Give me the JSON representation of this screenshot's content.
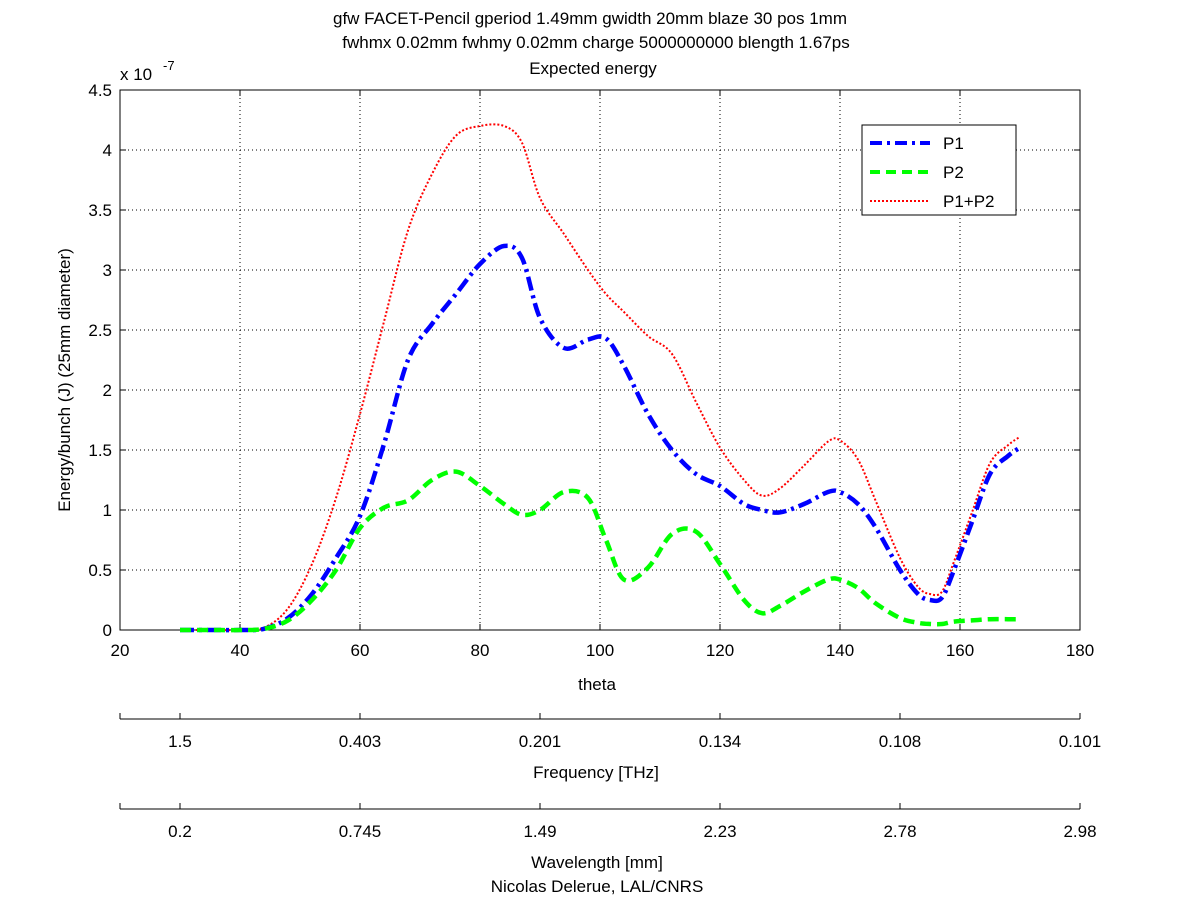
{
  "chart_data": {
    "type": "line",
    "title_lines": [
      "gfw FACET-Pencil gperiod 1.49mm gwidth 20mm blaze 30 pos 1mm",
      "fwhmx 0.02mm fwhmy 0.02mm charge 5000000000 blength 1.67ps",
      "Expected energy"
    ],
    "xlabel": "theta",
    "ylabel": "Energy/bunch (J)  (25mm diameter)",
    "y_exponent_label": "x 10",
    "y_exponent_power": "-7",
    "xlim": [
      20,
      180
    ],
    "ylim": [
      0,
      4.5
    ],
    "x_ticks": [
      "20",
      "40",
      "60",
      "80",
      "100",
      "120",
      "140",
      "160",
      "180"
    ],
    "y_ticks": [
      "0",
      "0.5",
      "1",
      "1.5",
      "2",
      "2.5",
      "3",
      "3.5",
      "4",
      "4.5"
    ],
    "grid": "on (dotted)",
    "legend_position": "top-right",
    "x": [
      30,
      35,
      40,
      44,
      48,
      52,
      56,
      60,
      64,
      68,
      72,
      76,
      80,
      84,
      87,
      90,
      94,
      98,
      101,
      104,
      108,
      112,
      116,
      120,
      124,
      127,
      130,
      134,
      138,
      140,
      143,
      146,
      150,
      153,
      155,
      157,
      159,
      162,
      165,
      168,
      170
    ],
    "series": [
      {
        "name": "P1",
        "color": "#0000ff",
        "style": "dash-dot",
        "values": [
          0,
          0,
          0,
          0.01,
          0.1,
          0.3,
          0.6,
          0.95,
          1.55,
          2.25,
          2.55,
          2.8,
          3.05,
          3.2,
          3.1,
          2.6,
          2.35,
          2.42,
          2.43,
          2.2,
          1.8,
          1.5,
          1.3,
          1.2,
          1.05,
          1.0,
          0.98,
          1.05,
          1.15,
          1.15,
          1.05,
          0.85,
          0.5,
          0.3,
          0.25,
          0.27,
          0.5,
          0.9,
          1.3,
          1.45,
          1.52
        ]
      },
      {
        "name": "P2",
        "color": "#00ff00",
        "style": "dashed",
        "values": [
          0,
          0,
          0,
          0.01,
          0.08,
          0.25,
          0.5,
          0.85,
          1.02,
          1.08,
          1.25,
          1.32,
          1.2,
          1.05,
          0.96,
          1.0,
          1.15,
          1.1,
          0.75,
          0.42,
          0.52,
          0.8,
          0.82,
          0.55,
          0.25,
          0.14,
          0.2,
          0.32,
          0.42,
          0.42,
          0.35,
          0.22,
          0.1,
          0.06,
          0.05,
          0.05,
          0.07,
          0.08,
          0.09,
          0.09,
          0.09
        ]
      },
      {
        "name": "P1+P2",
        "color": "#ff0000",
        "style": "dotted",
        "values": [
          0,
          0,
          0,
          0.02,
          0.18,
          0.55,
          1.1,
          1.8,
          2.57,
          3.33,
          3.8,
          4.12,
          4.2,
          4.2,
          4.06,
          3.6,
          3.3,
          3.0,
          2.8,
          2.65,
          2.45,
          2.3,
          1.9,
          1.52,
          1.25,
          1.12,
          1.18,
          1.37,
          1.57,
          1.58,
          1.42,
          1.07,
          0.6,
          0.36,
          0.3,
          0.32,
          0.57,
          0.98,
          1.39,
          1.54,
          1.61
        ]
      }
    ],
    "secondary_axes": [
      {
        "label": "Frequency [THz]",
        "tick_labels": [
          "1.5",
          "0.403",
          "0.201",
          "0.134",
          "0.108",
          "0.101"
        ]
      },
      {
        "label": "Wavelength [mm]",
        "tick_labels": [
          "0.2",
          "0.745",
          "1.49",
          "2.23",
          "2.78",
          "2.98"
        ]
      }
    ],
    "footer": "Nicolas Delerue, LAL/CNRS"
  }
}
